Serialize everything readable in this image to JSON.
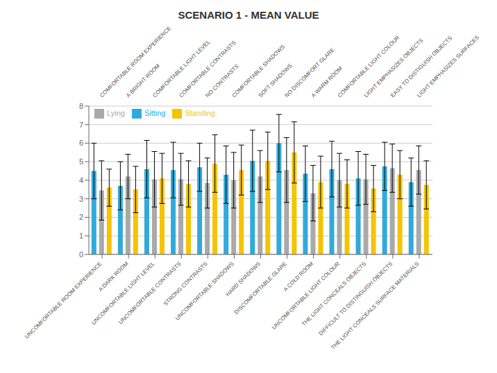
{
  "chart_data": {
    "type": "bar",
    "title": "SCENARIO 1 - MEAN VALUE",
    "categories": [
      "UNCOMFORTABLE ROOM EXPERIENCE",
      "A DARK ROOM",
      "UNCOMFORTABLE LIGHT LEVEL",
      "UNCOMFORTABLE CONTRASTS",
      "STRONG CONTRASTS",
      "UNCOMFORTABLE SHADOWS",
      "HARD SHADOWS",
      "DISCOMFORTABLE GLARE",
      "A COLD ROOM",
      "UNCOMFORTABLE LIGHT COLOUR",
      "THE LIGHT CONCEALS OBJECTS",
      "DIFFICULT TO DISTINGUISH OBJECTS",
      "THE LIGHT CONCEALS SURFACE MATERIALS"
    ],
    "categories_top": [
      "COMFORTABLE ROOM EXPERIENCE",
      "A BRIGHT ROOM",
      "COMFORTABLE LIGHT LEVEL",
      "COMFORTABLE CONTRASTS",
      "NO CONTRASTS",
      "COMFORTABLE SHADOWS",
      "SOFT SHADOWS",
      "NO DISCOMFORT GLARE",
      "A WARM ROOM",
      "COMFORTABLE LIGHT COLOUR",
      "LIGHT EMPHASIZES OBJECTS",
      "EASY TO DISTIGUISH OBJECTS",
      "LIGHT EMPHASIZES SURFACES"
    ],
    "series": [
      {
        "name": "Sitting",
        "color": "#30AADC",
        "values": [
          4.5,
          3.7,
          4.6,
          4.55,
          4.7,
          4.3,
          5.05,
          6.0,
          4.35,
          4.6,
          4.1,
          4.75,
          3.9
        ],
        "errors": [
          1.5,
          1.3,
          1.55,
          1.5,
          1.3,
          1.55,
          1.65,
          1.55,
          1.5,
          1.5,
          1.45,
          1.3,
          1.3
        ]
      },
      {
        "name": "Lying",
        "color": "#A9A9A9",
        "values": [
          3.45,
          4.2,
          4.05,
          4.05,
          3.85,
          4.0,
          4.2,
          4.55,
          3.3,
          4.0,
          4.05,
          4.65,
          4.55
        ],
        "errors": [
          1.6,
          1.2,
          1.5,
          1.4,
          1.35,
          1.5,
          1.4,
          1.75,
          1.5,
          1.45,
          1.35,
          1.3,
          1.3
        ]
      },
      {
        "name": "Standing",
        "color": "#F5C400",
        "values": [
          3.6,
          3.5,
          4.1,
          3.8,
          4.9,
          4.55,
          5.05,
          5.5,
          3.9,
          3.8,
          3.55,
          4.3,
          3.75
        ],
        "errors": [
          1.0,
          1.25,
          1.35,
          1.25,
          1.55,
          1.35,
          1.55,
          1.65,
          1.4,
          1.3,
          1.25,
          1.3,
          1.3
        ]
      }
    ],
    "ylim": [
      0,
      8
    ],
    "yticks": [
      0,
      1,
      2,
      3,
      4,
      5,
      6,
      7,
      8
    ],
    "grid": true,
    "legend": "upper left"
  }
}
